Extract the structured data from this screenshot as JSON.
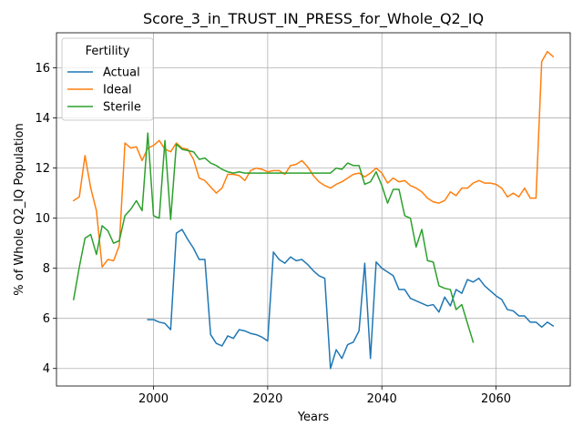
{
  "chart_data": {
    "type": "line",
    "title": "Score_3_in_TRUST_IN_PRESS_for_Whole_Q2_IQ",
    "xlabel": "Years",
    "ylabel": "% of Whole Q2_IQ Population",
    "xlim": [
      1983,
      2073
    ],
    "ylim": [
      3.3,
      17.4
    ],
    "xticks": [
      2000,
      2020,
      2040,
      2060
    ],
    "yticks": [
      4,
      6,
      8,
      10,
      12,
      14,
      16
    ],
    "grid": true,
    "legend": {
      "title": "Fertility",
      "placement": "top-left"
    },
    "colors": {
      "Actual": "#1f77b4",
      "Ideal": "#ff7f0e",
      "Sterile": "#2ca02c"
    },
    "series": [
      {
        "name": "Actual",
        "points": [
          [
            1999,
            5.95
          ],
          [
            2000,
            5.95
          ],
          [
            2001,
            5.85
          ],
          [
            2002,
            5.8
          ],
          [
            2003,
            5.55
          ],
          [
            2004,
            9.4
          ],
          [
            2005,
            9.55
          ],
          [
            2006,
            9.15
          ],
          [
            2007,
            8.8
          ],
          [
            2008,
            8.35
          ],
          [
            2009,
            8.35
          ],
          [
            2010,
            5.35
          ],
          [
            2011,
            5.0
          ],
          [
            2012,
            4.9
          ],
          [
            2013,
            5.3
          ],
          [
            2014,
            5.2
          ],
          [
            2015,
            5.55
          ],
          [
            2016,
            5.5
          ],
          [
            2017,
            5.4
          ],
          [
            2018,
            5.35
          ],
          [
            2019,
            5.25
          ],
          [
            2020,
            5.1
          ],
          [
            2021,
            8.65
          ],
          [
            2022,
            8.35
          ],
          [
            2023,
            8.2
          ],
          [
            2024,
            8.45
          ],
          [
            2025,
            8.3
          ],
          [
            2026,
            8.35
          ],
          [
            2027,
            8.15
          ],
          [
            2028,
            7.9
          ],
          [
            2029,
            7.7
          ],
          [
            2030,
            7.6
          ],
          [
            2031,
            4.0
          ],
          [
            2032,
            4.75
          ],
          [
            2033,
            4.4
          ],
          [
            2034,
            4.95
          ],
          [
            2035,
            5.05
          ],
          [
            2036,
            5.5
          ],
          [
            2037,
            8.2
          ],
          [
            2038,
            4.4
          ],
          [
            2039,
            8.25
          ],
          [
            2040,
            8.0
          ],
          [
            2041,
            7.85
          ],
          [
            2042,
            7.7
          ],
          [
            2043,
            7.15
          ],
          [
            2044,
            7.15
          ],
          [
            2045,
            6.8
          ],
          [
            2046,
            6.7
          ],
          [
            2047,
            6.6
          ],
          [
            2048,
            6.5
          ],
          [
            2049,
            6.55
          ],
          [
            2050,
            6.25
          ],
          [
            2051,
            6.85
          ],
          [
            2052,
            6.5
          ],
          [
            2053,
            7.15
          ],
          [
            2054,
            7.0
          ],
          [
            2055,
            7.55
          ],
          [
            2056,
            7.45
          ],
          [
            2057,
            7.6
          ],
          [
            2058,
            7.3
          ],
          [
            2059,
            7.1
          ],
          [
            2060,
            6.9
          ],
          [
            2061,
            6.75
          ],
          [
            2062,
            6.35
          ],
          [
            2063,
            6.3
          ],
          [
            2064,
            6.1
          ],
          [
            2065,
            6.1
          ],
          [
            2066,
            5.85
          ],
          [
            2067,
            5.85
          ],
          [
            2068,
            5.65
          ],
          [
            2069,
            5.85
          ],
          [
            2070,
            5.7
          ]
        ]
      },
      {
        "name": "Ideal",
        "points": [
          [
            1986,
            10.7
          ],
          [
            1987,
            10.85
          ],
          [
            1988,
            12.5
          ],
          [
            1989,
            11.2
          ],
          [
            1990,
            10.3
          ],
          [
            1991,
            8.05
          ],
          [
            1992,
            8.35
          ],
          [
            1993,
            8.3
          ],
          [
            1994,
            8.9
          ],
          [
            1995,
            13.0
          ],
          [
            1996,
            12.8
          ],
          [
            1997,
            12.85
          ],
          [
            1998,
            12.3
          ],
          [
            1999,
            12.8
          ],
          [
            2000,
            12.9
          ],
          [
            2001,
            13.1
          ],
          [
            2002,
            12.75
          ],
          [
            2003,
            12.65
          ],
          [
            2004,
            13.0
          ],
          [
            2005,
            12.8
          ],
          [
            2006,
            12.75
          ],
          [
            2007,
            12.35
          ],
          [
            2008,
            11.6
          ],
          [
            2009,
            11.5
          ],
          [
            2010,
            11.25
          ],
          [
            2011,
            11.0
          ],
          [
            2012,
            11.2
          ],
          [
            2013,
            11.75
          ],
          [
            2014,
            11.75
          ],
          [
            2015,
            11.7
          ],
          [
            2016,
            11.5
          ],
          [
            2017,
            11.9
          ],
          [
            2018,
            12.0
          ],
          [
            2019,
            11.95
          ],
          [
            2020,
            11.85
          ],
          [
            2021,
            11.9
          ],
          [
            2022,
            11.9
          ],
          [
            2023,
            11.75
          ],
          [
            2024,
            12.1
          ],
          [
            2025,
            12.15
          ],
          [
            2026,
            12.3
          ],
          [
            2027,
            12.05
          ],
          [
            2028,
            11.7
          ],
          [
            2029,
            11.45
          ],
          [
            2030,
            11.3
          ],
          [
            2031,
            11.2
          ],
          [
            2032,
            11.35
          ],
          [
            2033,
            11.45
          ],
          [
            2034,
            11.6
          ],
          [
            2035,
            11.75
          ],
          [
            2036,
            11.8
          ],
          [
            2037,
            11.65
          ],
          [
            2038,
            11.8
          ],
          [
            2039,
            12.0
          ],
          [
            2040,
            11.8
          ],
          [
            2041,
            11.4
          ],
          [
            2042,
            11.6
          ],
          [
            2043,
            11.45
          ],
          [
            2044,
            11.5
          ],
          [
            2045,
            11.3
          ],
          [
            2046,
            11.2
          ],
          [
            2047,
            11.05
          ],
          [
            2048,
            10.8
          ],
          [
            2049,
            10.65
          ],
          [
            2050,
            10.6
          ],
          [
            2051,
            10.7
          ],
          [
            2052,
            11.05
          ],
          [
            2053,
            10.9
          ],
          [
            2054,
            11.2
          ],
          [
            2055,
            11.2
          ],
          [
            2056,
            11.4
          ],
          [
            2057,
            11.5
          ],
          [
            2058,
            11.4
          ],
          [
            2059,
            11.4
          ],
          [
            2060,
            11.35
          ],
          [
            2061,
            11.2
          ],
          [
            2062,
            10.85
          ],
          [
            2063,
            11.0
          ],
          [
            2064,
            10.85
          ],
          [
            2065,
            11.2
          ],
          [
            2066,
            10.8
          ],
          [
            2067,
            10.8
          ],
          [
            2068,
            16.25
          ],
          [
            2069,
            16.65
          ],
          [
            2070,
            16.45
          ]
        ]
      },
      {
        "name": "Sterile",
        "points": [
          [
            1986,
            6.75
          ],
          [
            1987,
            8.05
          ],
          [
            1988,
            9.2
          ],
          [
            1989,
            9.35
          ],
          [
            1990,
            8.55
          ],
          [
            1991,
            9.7
          ],
          [
            1992,
            9.5
          ],
          [
            1993,
            9.0
          ],
          [
            1994,
            9.1
          ],
          [
            1995,
            10.1
          ],
          [
            1996,
            10.35
          ],
          [
            1997,
            10.7
          ],
          [
            1998,
            10.3
          ],
          [
            1999,
            13.4
          ],
          [
            2000,
            10.1
          ],
          [
            2001,
            10.0
          ],
          [
            2002,
            13.1
          ],
          [
            2003,
            9.95
          ],
          [
            2004,
            12.95
          ],
          [
            2005,
            12.75
          ],
          [
            2006,
            12.7
          ],
          [
            2007,
            12.65
          ],
          [
            2008,
            12.35
          ],
          [
            2009,
            12.4
          ],
          [
            2010,
            12.2
          ],
          [
            2011,
            12.1
          ],
          [
            2012,
            11.95
          ],
          [
            2013,
            11.85
          ],
          [
            2014,
            11.8
          ],
          [
            2015,
            11.85
          ],
          [
            2016,
            11.8
          ],
          [
            2017,
            11.8
          ],
          [
            2018,
            11.8
          ],
          [
            2019,
            11.8
          ],
          [
            2020,
            11.8
          ],
          [
            2021,
            11.8
          ],
          [
            2022,
            11.8
          ],
          [
            2023,
            11.8
          ],
          [
            2024,
            11.8
          ],
          [
            2025,
            11.8
          ],
          [
            2026,
            11.8
          ],
          [
            2027,
            11.8
          ],
          [
            2028,
            11.8
          ],
          [
            2029,
            11.8
          ],
          [
            2030,
            11.8
          ],
          [
            2031,
            11.8
          ],
          [
            2032,
            12.0
          ],
          [
            2033,
            11.95
          ],
          [
            2034,
            12.2
          ],
          [
            2035,
            12.1
          ],
          [
            2036,
            12.1
          ],
          [
            2037,
            11.35
          ],
          [
            2038,
            11.45
          ],
          [
            2039,
            11.85
          ],
          [
            2040,
            11.3
          ],
          [
            2041,
            10.6
          ],
          [
            2042,
            11.15
          ],
          [
            2043,
            11.15
          ],
          [
            2044,
            10.1
          ],
          [
            2045,
            10.0
          ],
          [
            2046,
            8.85
          ],
          [
            2047,
            9.55
          ],
          [
            2048,
            8.3
          ],
          [
            2049,
            8.25
          ],
          [
            2050,
            7.3
          ],
          [
            2051,
            7.2
          ],
          [
            2052,
            7.15
          ],
          [
            2053,
            6.35
          ],
          [
            2054,
            6.55
          ],
          [
            2055,
            5.8
          ],
          [
            2056,
            5.05
          ]
        ]
      }
    ]
  }
}
